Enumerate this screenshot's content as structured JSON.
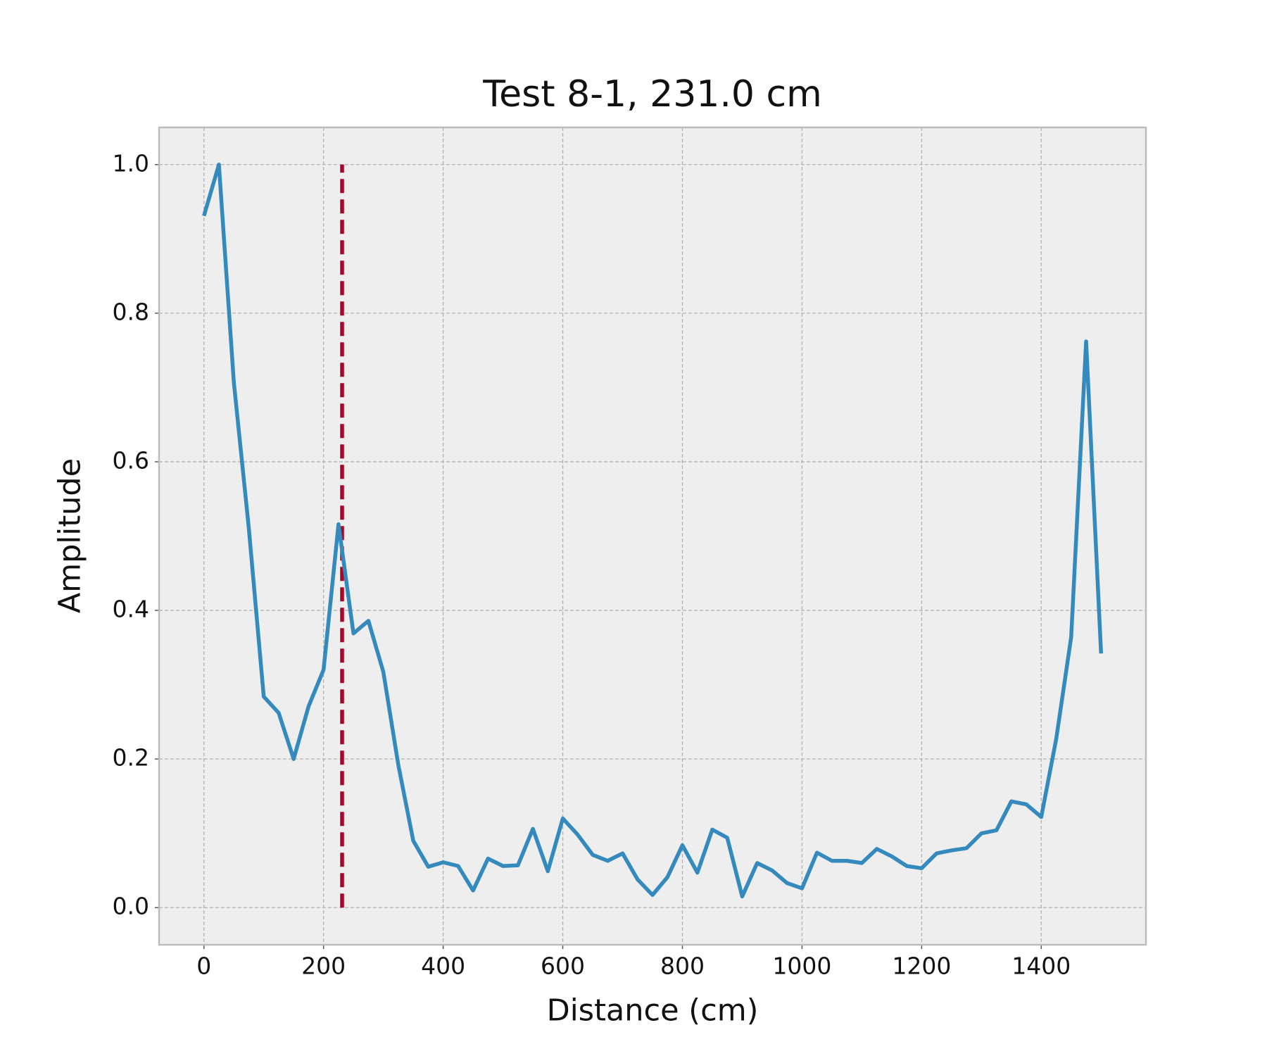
{
  "chart_data": {
    "type": "line",
    "title": "Test 8-1, 231.0 cm",
    "x_label": "Distance (cm)",
    "y_label": "Amplitude",
    "x": [
      0,
      25,
      50,
      75,
      100,
      125,
      150,
      175,
      200,
      225,
      250,
      275,
      300,
      325,
      350,
      375,
      400,
      425,
      450,
      475,
      500,
      525,
      550,
      575,
      600,
      625,
      650,
      675,
      700,
      725,
      750,
      775,
      800,
      825,
      850,
      875,
      900,
      925,
      950,
      975,
      1000,
      1025,
      1050,
      1075,
      1100,
      1125,
      1150,
      1175,
      1200,
      1225,
      1250,
      1275,
      1300,
      1325,
      1350,
      1375,
      1400,
      1425,
      1450,
      1475,
      1500
    ],
    "series": [
      {
        "color": "#348ABD",
        "values": [
          0.931,
          1.0,
          0.707,
          0.511,
          0.284,
          0.262,
          0.2,
          0.271,
          0.32,
          0.516,
          0.369,
          0.386,
          0.317,
          0.192,
          0.09,
          0.055,
          0.061,
          0.056,
          0.023,
          0.066,
          0.056,
          0.057,
          0.106,
          0.049,
          0.12,
          0.098,
          0.071,
          0.063,
          0.073,
          0.038,
          0.017,
          0.041,
          0.084,
          0.047,
          0.105,
          0.094,
          0.015,
          0.06,
          0.05,
          0.033,
          0.026,
          0.074,
          0.063,
          0.063,
          0.06,
          0.079,
          0.069,
          0.056,
          0.053,
          0.073,
          0.077,
          0.08,
          0.1,
          0.104,
          0.143,
          0.139,
          0.122,
          0.227,
          0.364,
          0.762,
          0.342
        ]
      }
    ],
    "vline": {
      "x": 231,
      "ymin": 0,
      "ymax": 1,
      "color": "#A60628",
      "dashed": true
    },
    "xlim": [
      -75,
      1575
    ],
    "ylim": [
      -0.05,
      1.05
    ],
    "xticks": [
      0,
      200,
      400,
      600,
      800,
      1000,
      1200,
      1400
    ],
    "yticks": [
      {
        "value": 0,
        "label": "0.0"
      },
      {
        "value": 0.2,
        "label": "0.2"
      },
      {
        "value": 0.4,
        "label": "0.4"
      },
      {
        "value": 0.6,
        "label": "0.6"
      },
      {
        "value": 0.8,
        "label": "0.8"
      },
      {
        "value": 1,
        "label": "1.0"
      }
    ],
    "grid": true
  }
}
